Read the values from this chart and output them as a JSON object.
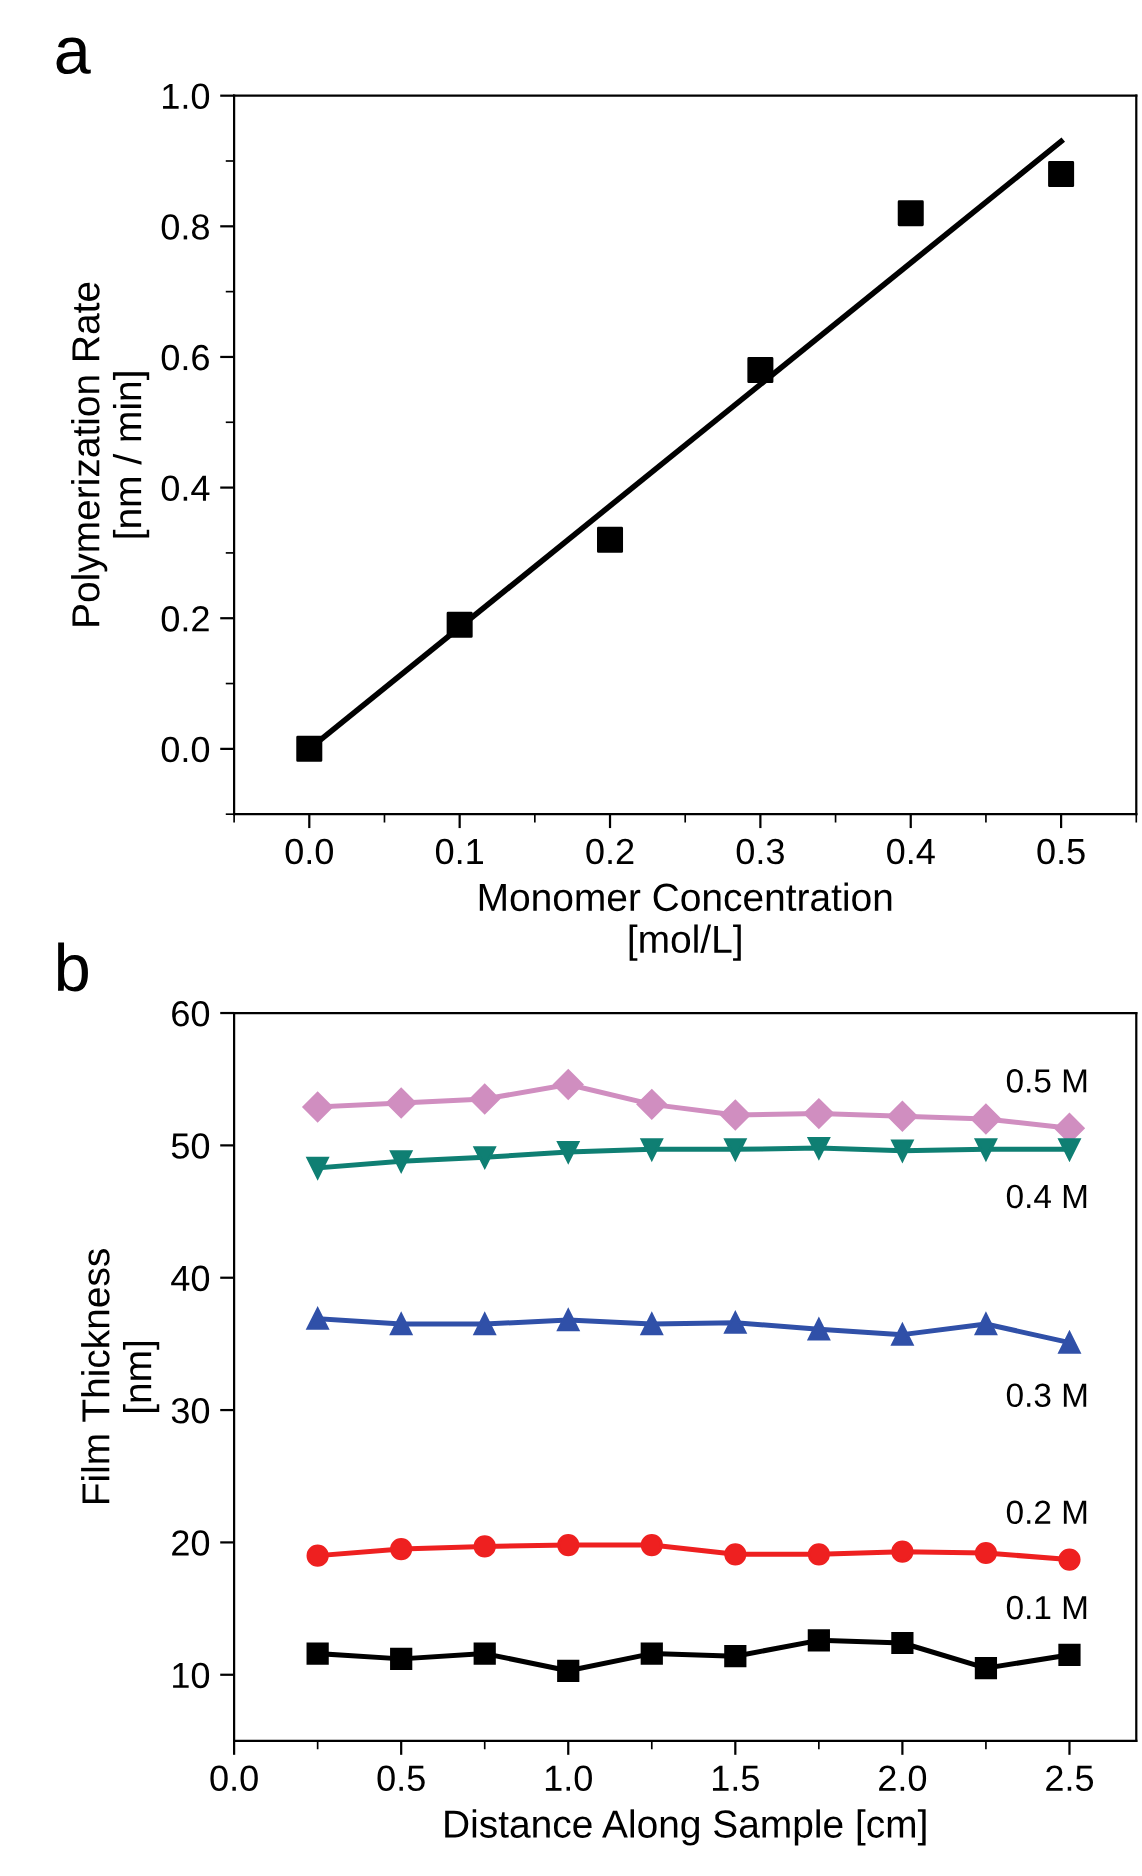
{
  "chart_data": [
    {
      "type": "scatter",
      "title": "a",
      "xlabel": "Monomer Concentration\n[mol/L]",
      "ylabel": "Polymerization Rate\n[nm / min]",
      "x": [
        0.0,
        0.1,
        0.2,
        0.3,
        0.4,
        0.5
      ],
      "marker": "square",
      "series": [
        {
          "type": "scatter",
          "color": "#000000",
          "values": [
            0.0,
            0.19,
            0.32,
            0.58,
            0.82,
            0.88
          ]
        },
        {
          "type": "line",
          "color": "#000000",
          "x": [
            0.0,
            0.5
          ],
          "values": [
            0.0,
            0.93
          ],
          "marker": "none"
        }
      ],
      "xlim": [
        -0.05,
        0.55
      ],
      "ylim": [
        -0.1,
        1.0
      ],
      "xticks": [
        {
          "value": 0,
          "label": "0.0"
        },
        0.1,
        0.2,
        0.3,
        0.4,
        0.5
      ],
      "yticks": [
        {
          "value": 0,
          "label": "0.0"
        },
        0.2,
        0.4,
        0.6,
        0.8,
        {
          "value": 1,
          "label": "1.0"
        }
      ],
      "grid": false,
      "legend": false
    },
    {
      "type": "line",
      "title": "b",
      "xlabel": "Distance Along Sample [cm]",
      "ylabel": "Film Thickness\n[nm]",
      "x": [
        0.25,
        0.5,
        0.75,
        1.0,
        1.25,
        1.5,
        1.75,
        2.0,
        2.25,
        2.5
      ],
      "series": [
        {
          "name": "0.5 M",
          "color": "#d08ec0",
          "marker": "diamond",
          "values": [
            52.9,
            53.2,
            53.5,
            54.6,
            53.1,
            52.3,
            52.4,
            52.2,
            52.0,
            51.3
          ]
        },
        {
          "name": "0.4 M",
          "color": "#0f7f73",
          "marker": "triangle_down",
          "values": [
            48.3,
            48.8,
            49.1,
            49.5,
            49.7,
            49.7,
            49.8,
            49.6,
            49.7,
            49.7
          ]
        },
        {
          "name": "0.3 M",
          "color": "#3050a8",
          "marker": "triangle",
          "values": [
            36.9,
            36.5,
            36.5,
            36.8,
            36.5,
            36.6,
            36.1,
            35.7,
            36.5,
            35.1
          ]
        },
        {
          "name": "0.2 M",
          "color": "#ee2020",
          "marker": "circle",
          "values": [
            19.0,
            19.5,
            19.7,
            19.8,
            19.8,
            19.1,
            19.1,
            19.3,
            19.2,
            18.7
          ]
        },
        {
          "name": "0.1 M",
          "color": "#000000",
          "marker": "square",
          "values": [
            11.6,
            11.2,
            11.6,
            10.3,
            11.6,
            11.4,
            12.6,
            12.4,
            10.5,
            11.5
          ]
        }
      ],
      "xlim": [
        0.0,
        2.7
      ],
      "ylim": [
        5,
        60
      ],
      "xticks": [
        {
          "value": 0,
          "label": "0.0"
        },
        0.5,
        {
          "value": 1,
          "label": "1.0"
        },
        1.5,
        {
          "value": 2,
          "label": "2.0"
        },
        2.5
      ],
      "yticks": [
        10,
        20,
        30,
        40,
        50,
        60
      ],
      "grid": false,
      "legend": false
    }
  ]
}
